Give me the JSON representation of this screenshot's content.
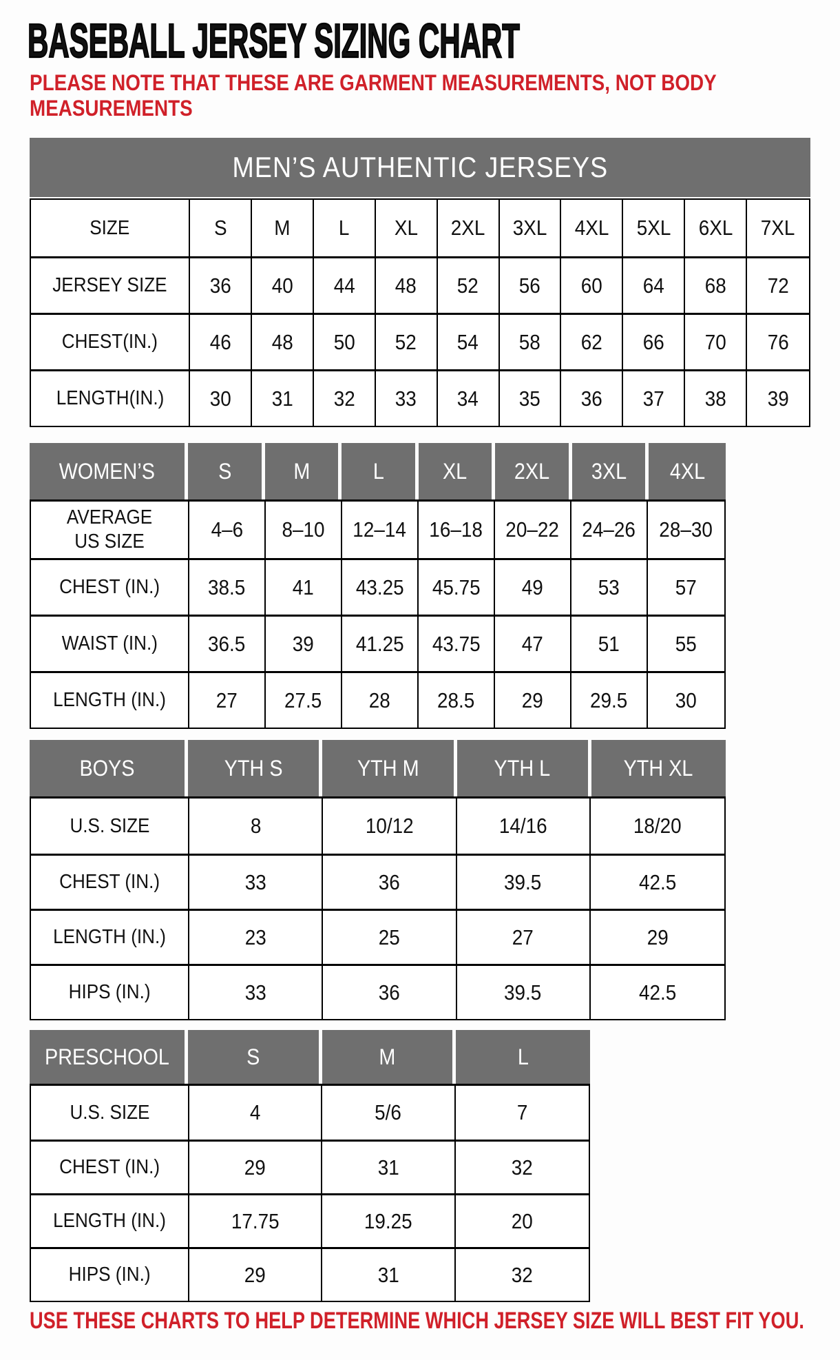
{
  "page": {
    "title": "BASEBALL JERSEY SIZING CHART",
    "note": "PLEASE NOTE THAT THESE ARE GARMENT MEASUREMENTS, NOT BODY\nMEASUREMENTS",
    "footer": "USE THESE CHARTS TO HELP DETERMINE WHICH JERSEY SIZE WILL BEST FIT YOU."
  },
  "colors": {
    "header_gray": "#6f6f6f",
    "accent_red": "#d02029",
    "text_black": "#111111",
    "background": "#fdfdfd"
  },
  "chart_data": [
    {
      "type": "table",
      "id": "mens",
      "banner": true,
      "title": "MEN’S AUTHENTIC JERSEYS",
      "rows": [
        {
          "label": "SIZE",
          "values": [
            "S",
            "M",
            "L",
            "XL",
            "2XL",
            "3XL",
            "4XL",
            "5XL",
            "6XL",
            "7XL"
          ]
        },
        {
          "label": "JERSEY SIZE",
          "values": [
            "36",
            "40",
            "44",
            "48",
            "52",
            "56",
            "60",
            "64",
            "68",
            "72"
          ]
        },
        {
          "label": "CHEST(IN.)",
          "values": [
            "46",
            "48",
            "50",
            "52",
            "54",
            "58",
            "62",
            "66",
            "70",
            "76"
          ]
        },
        {
          "label": "LENGTH(IN.)",
          "values": [
            "30",
            "31",
            "32",
            "33",
            "34",
            "35",
            "36",
            "37",
            "38",
            "39"
          ]
        }
      ]
    },
    {
      "type": "table",
      "id": "womens",
      "header_label": "WOMEN’S",
      "header_cols": [
        "S",
        "M",
        "L",
        "XL",
        "2XL",
        "3XL",
        "4XL"
      ],
      "rows": [
        {
          "label": "AVERAGE\nUS SIZE",
          "values": [
            "4–6",
            "8–10",
            "12–14",
            "16–18",
            "20–22",
            "24–26",
            "28–30"
          ]
        },
        {
          "label": "CHEST (IN.)",
          "values": [
            "38.5",
            "41",
            "43.25",
            "45.75",
            "49",
            "53",
            "57"
          ]
        },
        {
          "label": "WAIST (IN.)",
          "values": [
            "36.5",
            "39",
            "41.25",
            "43.75",
            "47",
            "51",
            "55"
          ]
        },
        {
          "label": "LENGTH (IN.)",
          "values": [
            "27",
            "27.5",
            "28",
            "28.5",
            "29",
            "29.5",
            "30"
          ]
        }
      ]
    },
    {
      "type": "table",
      "id": "boys",
      "header_label": "BOYS",
      "header_cols": [
        "YTH S",
        "YTH M",
        "YTH L",
        "YTH XL"
      ],
      "rows": [
        {
          "label": "U.S. SIZE",
          "values": [
            "8",
            "10/12",
            "14/16",
            "18/20"
          ]
        },
        {
          "label": "CHEST (IN.)",
          "values": [
            "33",
            "36",
            "39.5",
            "42.5"
          ]
        },
        {
          "label": "LENGTH (IN.)",
          "values": [
            "23",
            "25",
            "27",
            "29"
          ]
        },
        {
          "label": "HIPS (IN.)",
          "values": [
            "33",
            "36",
            "39.5",
            "42.5"
          ]
        }
      ]
    },
    {
      "type": "table",
      "id": "preschool",
      "header_label": "PRESCHOOL",
      "header_cols": [
        "S",
        "M",
        "L"
      ],
      "rows": [
        {
          "label": "U.S. SIZE",
          "values": [
            "4",
            "5/6",
            "7"
          ]
        },
        {
          "label": "CHEST (IN.)",
          "values": [
            "29",
            "31",
            "32"
          ]
        },
        {
          "label": "LENGTH (IN.)",
          "values": [
            "17.75",
            "19.25",
            "20"
          ]
        },
        {
          "label": "HIPS (IN.)",
          "values": [
            "29",
            "31",
            "32"
          ]
        }
      ]
    }
  ]
}
